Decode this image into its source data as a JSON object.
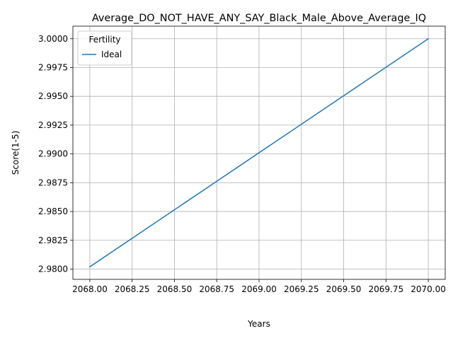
{
  "chart_data": {
    "type": "line",
    "title": "Average_DO_NOT_HAVE_ANY_SAY_Black_Male_Above_Average_IQ",
    "xlabel": "Years",
    "ylabel": "Score(1-5)",
    "xlim": [
      2067.9,
      2070.1
    ],
    "ylim": [
      2.97911,
      3.00109
    ],
    "x_ticks": [
      2068.0,
      2068.25,
      2068.5,
      2068.75,
      2069.0,
      2069.25,
      2069.5,
      2069.75,
      2070.0
    ],
    "x_tick_labels": [
      "2068.00",
      "2068.25",
      "2068.50",
      "2068.75",
      "2069.00",
      "2069.25",
      "2069.50",
      "2069.75",
      "2070.00"
    ],
    "y_ticks": [
      2.98,
      2.9825,
      2.985,
      2.9875,
      2.99,
      2.9925,
      2.995,
      2.9975,
      3.0
    ],
    "y_tick_labels": [
      "2.9800",
      "2.9825",
      "2.9850",
      "2.9875",
      "2.9900",
      "2.9925",
      "2.9950",
      "2.9975",
      "3.0000"
    ],
    "grid": true,
    "legend": {
      "title": "Fertility",
      "placement": "upper-left"
    },
    "series": [
      {
        "name": "Ideal",
        "color": "#1f77b4",
        "x": [
          2068.0,
          2070.0
        ],
        "y": [
          2.9802,
          3.0
        ]
      }
    ]
  }
}
